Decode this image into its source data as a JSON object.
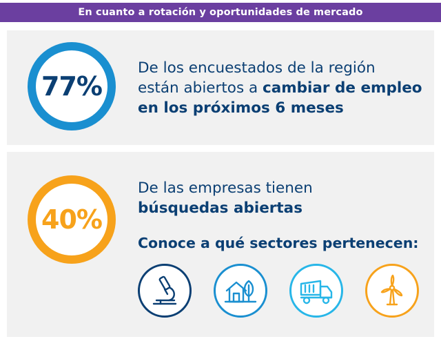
{
  "banner": {
    "title": "En cuanto a rotación y oportunidades de mercado"
  },
  "stat1": {
    "value": "77%",
    "text_plain_1": "De los encuestados de la región",
    "text_plain_2": "están abiertos a ",
    "text_bold_1": "cambiar de empleo",
    "text_bold_2": "en los próximos 6 meses"
  },
  "stat2": {
    "value": "40%",
    "text_plain": "De las empresas tienen",
    "text_bold": "búsquedas abiertas",
    "cta": "Conoce a qué sectores pertenecen:"
  },
  "sectors": [
    {
      "icon": "microscope-icon",
      "color": "#0b3f73"
    },
    {
      "icon": "house-tree-icon",
      "color": "#1a8fd0"
    },
    {
      "icon": "dump-truck-icon",
      "color": "#27b6e8"
    },
    {
      "icon": "wind-turbine-icon",
      "color": "#f7a21b"
    }
  ],
  "colors": {
    "purple": "#6b3fa0",
    "navy": "#0b3f73",
    "blue": "#1a8fd0",
    "orange": "#f7a21b",
    "panel": "#f1f1f1"
  }
}
